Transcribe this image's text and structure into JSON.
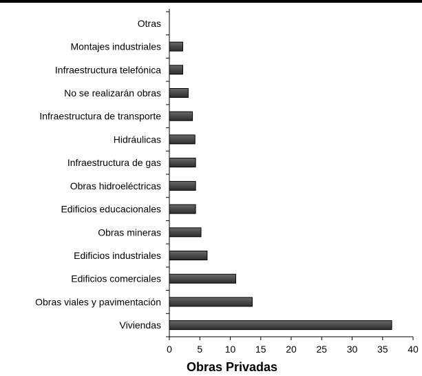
{
  "chart_data": {
    "type": "bar",
    "orientation": "horizontal",
    "categories": [
      "Otras",
      "Montajes industriales",
      "Infraestructura telefónica",
      "No se realizarán obras",
      "Infraestructura de transporte",
      "Hidráulicas",
      "Infraestructura de gas",
      "Obras hidroeléctricas",
      "Edificios educacionales",
      "Obras mineras",
      "Edificios industriales",
      "Edificios comerciales",
      "Obras viales y pavimentación",
      "Viviendas"
    ],
    "values": [
      0,
      2.2,
      2.2,
      3.1,
      3.8,
      4.2,
      4.3,
      4.3,
      4.3,
      5.2,
      6.2,
      10.9,
      13.6,
      36.5
    ],
    "xlabel": "Obras Privadas",
    "xlim": [
      0,
      40
    ],
    "xticks": [
      0,
      5,
      10,
      15,
      20,
      25,
      30,
      35,
      40
    ],
    "grid": false,
    "legend": "none",
    "bar_color": "#4a4a4a",
    "bar_edge_color": "#000000",
    "top_rule_color": "#000000"
  }
}
